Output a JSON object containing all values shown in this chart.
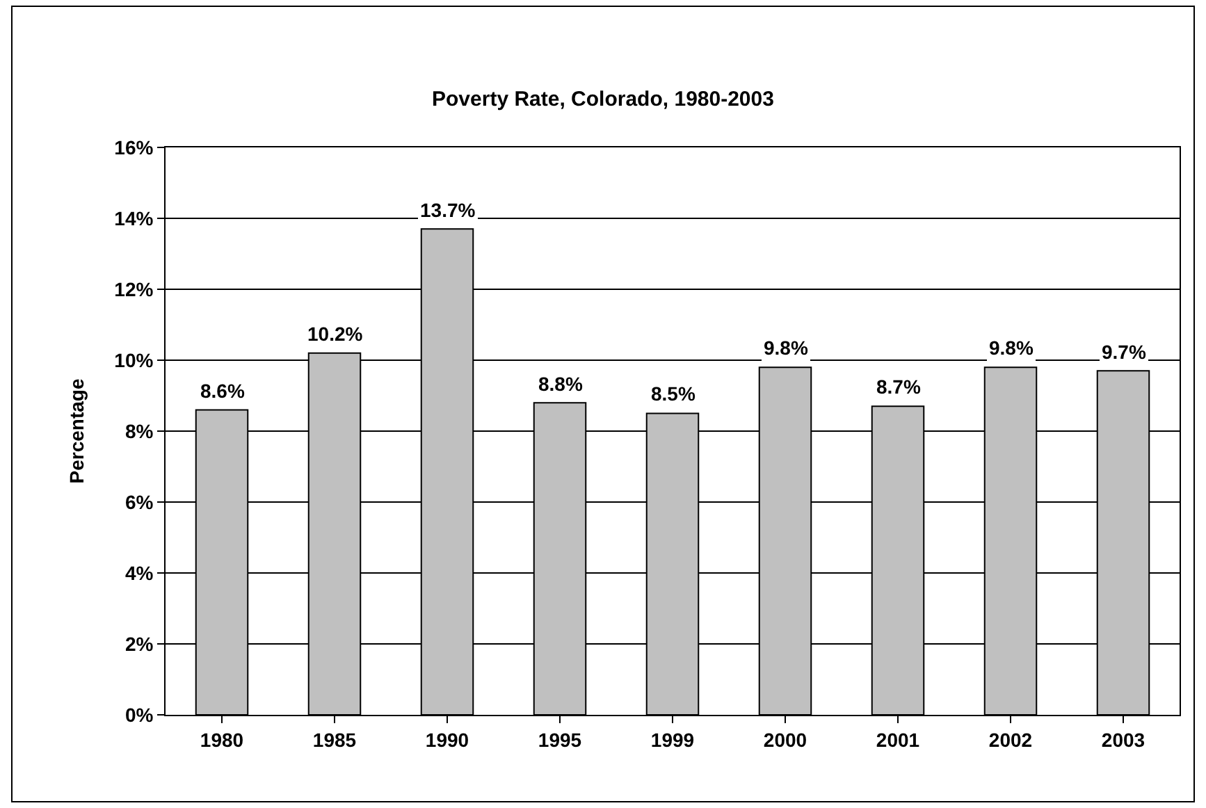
{
  "chart_data": {
    "type": "bar",
    "title": "Poverty Rate, Colorado, 1980-2003",
    "ylabel": "Percentage",
    "categories": [
      "1980",
      "1985",
      "1990",
      "1995",
      "1999",
      "2000",
      "2001",
      "2002",
      "2003"
    ],
    "values": [
      8.6,
      10.2,
      13.7,
      8.8,
      8.5,
      9.8,
      8.7,
      9.8,
      9.7
    ],
    "value_labels": [
      "8.6%",
      "10.2%",
      "13.7%",
      "8.8%",
      "8.5%",
      "9.8%",
      "8.7%",
      "9.8%",
      "9.7%"
    ],
    "color": "#c0c0c0",
    "ylim": [
      0,
      16
    ],
    "yticks": [
      {
        "value": 0,
        "label": "0%"
      },
      {
        "value": 2,
        "label": "2%"
      },
      {
        "value": 4,
        "label": "4%"
      },
      {
        "value": 6,
        "label": "6%"
      },
      {
        "value": 8,
        "label": "8%"
      },
      {
        "value": 10,
        "label": "10%"
      },
      {
        "value": 12,
        "label": "12%"
      },
      {
        "value": 14,
        "label": "14%"
      },
      {
        "value": 16,
        "label": "16%"
      }
    ],
    "grid": "y"
  }
}
